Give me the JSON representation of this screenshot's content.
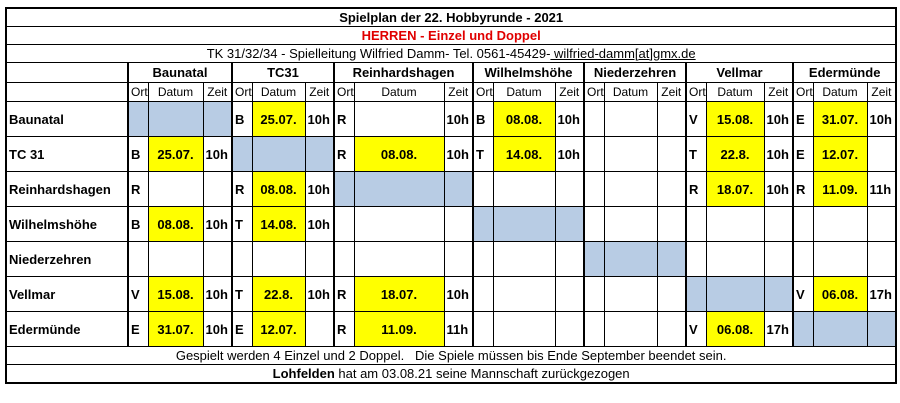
{
  "header": {
    "title": "Spielplan der 22. Hobbyrunde - 2021",
    "subtitle": "HERREN - Einzel und Doppel",
    "info": "TK 31/32/34 - Spielleitung Wilfried Damm- Tel. 0561-45429-",
    "email": " wilfried-damm[at]gmx.de"
  },
  "teams": [
    "Baunatal",
    "TC31",
    "Reinhardshagen",
    "Wilhelmshöhe",
    "Niederzehren",
    "Vellmar",
    "Edermünde"
  ],
  "subheaders": [
    "Ort",
    "Datum",
    "Zeit"
  ],
  "rows": [
    {
      "team": "Baunatal",
      "cells": [
        null,
        [
          "B",
          "25.07.",
          "10h"
        ],
        [
          "R",
          null,
          "10h"
        ],
        [
          "B",
          "08.08.",
          "10h"
        ],
        null,
        [
          "V",
          "15.08.",
          "10h"
        ],
        [
          "E",
          "31.07.",
          "10h"
        ]
      ]
    },
    {
      "team": "TC 31",
      "cells": [
        [
          "B",
          "25.07.",
          "10h"
        ],
        null,
        [
          "R",
          "08.08.",
          "10h"
        ],
        [
          "T",
          "14.08.",
          "10h"
        ],
        null,
        [
          "T",
          "22.8.",
          "10h"
        ],
        [
          "E",
          "12.07.",
          null
        ]
      ]
    },
    {
      "team": "Reinhardshagen",
      "cells": [
        [
          "R",
          null,
          null
        ],
        [
          "R",
          "08.08.",
          "10h"
        ],
        null,
        null,
        null,
        [
          "R",
          "18.07.",
          "10h"
        ],
        [
          "R",
          "11.09.",
          "11h"
        ]
      ]
    },
    {
      "team": "Wilhelmshöhe",
      "cells": [
        [
          "B",
          "08.08.",
          "10h"
        ],
        [
          "T",
          "14.08.",
          "10h"
        ],
        null,
        null,
        null,
        null,
        null
      ]
    },
    {
      "team": "Niederzehren",
      "cells": [
        null,
        null,
        null,
        null,
        null,
        null,
        null
      ]
    },
    {
      "team": "Vellmar",
      "cells": [
        [
          "V",
          "15.08.",
          "10h"
        ],
        [
          "T",
          "22.8.",
          "10h"
        ],
        [
          "R",
          "18.07.",
          "10h"
        ],
        null,
        null,
        null,
        [
          "V",
          "06.08.",
          "17h"
        ]
      ]
    },
    {
      "team": "Edermünde",
      "cells": [
        [
          "E",
          "31.07.",
          "10h"
        ],
        [
          "E",
          "12.07.",
          null
        ],
        [
          "R",
          "11.09.",
          "11h"
        ],
        null,
        null,
        [
          "V",
          "06.08.",
          "17h"
        ],
        null
      ]
    }
  ],
  "footer": {
    "note": "Gespielt werden 4 Einzel und 2 Doppel.   Die Spiele müssen bis Ende September beendet sein.",
    "withdrawn_team": "Lohfelden",
    "withdrawn_text": " hat am 03.08.21 seine Mannschaft zurückgezogen"
  }
}
